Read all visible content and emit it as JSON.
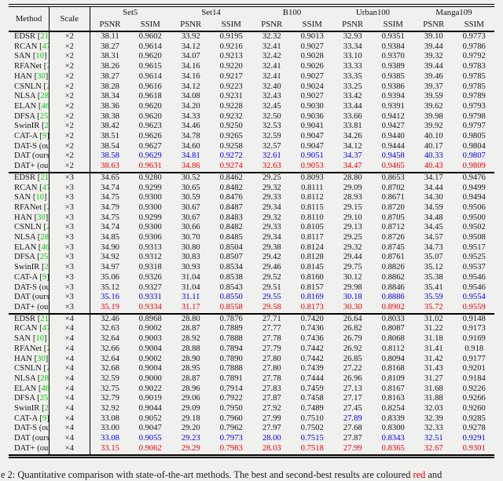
{
  "colors": {
    "cite_green": "#00cc00",
    "second_best_blue": "#0000e6",
    "best_red": "#e60000"
  },
  "table": {
    "header": {
      "method": "Method",
      "scale": "Scale",
      "psnr": "PSNR",
      "ssim": "SSIM",
      "datasets": [
        "Set5",
        "Set14",
        "B100",
        "Urban100",
        "Manga109"
      ]
    },
    "blocks": [
      {
        "scale": "×2",
        "rows": [
          {
            "method": "EDSR",
            "cite": "21",
            "style": "normal",
            "values": [
              "38.11",
              "0.9602",
              "33.92",
              "0.9195",
              "32.32",
              "0.9013",
              "32.93",
              "0.9351",
              "39.10",
              "0.9773"
            ]
          },
          {
            "method": "RCAN",
            "cite": "47",
            "style": "normal",
            "values": [
              "38.27",
              "0.9614",
              "34.12",
              "0.9216",
              "32.41",
              "0.9027",
              "33.34",
              "0.9384",
              "39.44",
              "0.9786"
            ]
          },
          {
            "method": "SAN",
            "cite": "10",
            "style": "normal",
            "values": [
              "38.31",
              "0.9620",
              "34.07",
              "0.9213",
              "32.42",
              "0.9028",
              "33.10",
              "0.9370",
              "39.32",
              "0.9792"
            ]
          },
          {
            "method": "RFANet",
            "cite": "23",
            "style": "normal",
            "values": [
              "38.26",
              "0.9615",
              "34.16",
              "0.9220",
              "32.41",
              "0.9026",
              "33.33",
              "0.9389",
              "39.44",
              "0.9783"
            ]
          },
          {
            "method": "HAN",
            "cite": "30",
            "style": "normal",
            "values": [
              "38.27",
              "0.9614",
              "34.16",
              "0.9217",
              "32.41",
              "0.9027",
              "33.35",
              "0.9385",
              "39.46",
              "0.9785"
            ]
          },
          {
            "method": "CSNLN",
            "cite": "29",
            "style": "normal",
            "values": [
              "38.28",
              "0.9616",
              "34.12",
              "0.9223",
              "32.40",
              "0.9024",
              "33.25",
              "0.9386",
              "39.37",
              "0.9785"
            ]
          },
          {
            "method": "NLSA",
            "cite": "28",
            "style": "normal",
            "values": [
              "38.34",
              "0.9618",
              "34.08",
              "0.9231",
              "32.43",
              "0.9027",
              "33.42",
              "0.9394",
              "39.59",
              "0.9789"
            ]
          },
          {
            "method": "ELAN",
            "cite": "46",
            "style": "normal",
            "values": [
              "38.36",
              "0.9620",
              "34.20",
              "0.9228",
              "32.45",
              "0.9030",
              "33.44",
              "0.9391",
              "39.62",
              "0.9793"
            ]
          },
          {
            "method": "DFSA",
            "cite": "25",
            "style": "normal",
            "values": [
              "38.38",
              "0.9620",
              "34.33",
              "0.9232",
              "32.50",
              "0.9036",
              "33.66",
              "0.9412",
              "39.98",
              "0.9798"
            ]
          },
          {
            "method": "SwinIR",
            "cite": "20",
            "style": "normal",
            "values": [
              "38.42",
              "0.9623",
              "34.46",
              "0.9250",
              "32.53",
              "0.9041",
              "33.81",
              "0.9427",
              "39.92",
              "0.9797"
            ]
          },
          {
            "method": "CAT-A",
            "cite": "9",
            "style": "normal",
            "values": [
              "38.51",
              "0.9626",
              "34.78",
              "0.9265",
              "32.59",
              "0.9047",
              "34.26",
              "0.9440",
              "40.10",
              "0.9805"
            ]
          },
          {
            "method": "DAT-S (ours)",
            "cite": null,
            "style": "normal",
            "values": [
              "38.54",
              "0.9627",
              "34.60",
              "0.9258",
              "32.57",
              "0.9047",
              "34.12",
              "0.9444",
              "40.17",
              "0.9804"
            ]
          },
          {
            "method": "DAT (ours)",
            "cite": null,
            "style": "second",
            "values": [
              "38.58",
              "0.9629",
              "34.81",
              "0.9272",
              "32.61",
              "0.9051",
              "34.37",
              "0.9458",
              "40.33",
              "0.9807"
            ]
          },
          {
            "method": "DAT+ (ours)",
            "cite": null,
            "style": "best",
            "values": [
              "38.63",
              "0.9631",
              "34.86",
              "0.9274",
              "32.63",
              "0.9053",
              "34.47",
              "0.9465",
              "40.43",
              "0.9809"
            ]
          }
        ]
      },
      {
        "scale": "×3",
        "rows": [
          {
            "method": "EDSR",
            "cite": "21",
            "style": "normal",
            "values": [
              "34.65",
              "0.9280",
              "30.52",
              "0.8462",
              "29.25",
              "0.8093",
              "28.80",
              "0.8653",
              "34.17",
              "0.9476"
            ]
          },
          {
            "method": "RCAN",
            "cite": "47",
            "style": "normal",
            "values": [
              "34.74",
              "0.9299",
              "30.65",
              "0.8482",
              "29.32",
              "0.8111",
              "29.09",
              "0.8702",
              "34.44",
              "0.9499"
            ]
          },
          {
            "method": "SAN",
            "cite": "10",
            "style": "normal",
            "values": [
              "34.75",
              "0.9300",
              "30.59",
              "0.8476",
              "29.33",
              "0.8112",
              "28.93",
              "0.8671",
              "34.30",
              "0.9494"
            ]
          },
          {
            "method": "RFANet",
            "cite": "23",
            "style": "normal",
            "values": [
              "34.79",
              "0.9300",
              "30.67",
              "0.8487",
              "29.34",
              "0.8115",
              "29.15",
              "0.8720",
              "34.59",
              "0.9506"
            ]
          },
          {
            "method": "HAN",
            "cite": "30",
            "style": "normal",
            "values": [
              "34.75",
              "0.9299",
              "30.67",
              "0.8483",
              "29.32",
              "0.8110",
              "29.10",
              "0.8705",
              "34.48",
              "0.9500"
            ]
          },
          {
            "method": "CSNLN",
            "cite": "29",
            "style": "normal",
            "values": [
              "34.74",
              "0.9300",
              "30.66",
              "0.8482",
              "29.33",
              "0.8105",
              "29.13",
              "0.8712",
              "34.45",
              "0.9502"
            ]
          },
          {
            "method": "NLSA",
            "cite": "28",
            "style": "normal",
            "values": [
              "34.85",
              "0.9306",
              "30.70",
              "0.8485",
              "29.34",
              "0.8117",
              "29.25",
              "0.8726",
              "34.57",
              "0.9508"
            ]
          },
          {
            "method": "ELAN",
            "cite": "46",
            "style": "normal",
            "values": [
              "34.90",
              "0.9313",
              "30.80",
              "0.8504",
              "29.38",
              "0.8124",
              "29.32",
              "0.8745",
              "34.73",
              "0.9517"
            ]
          },
          {
            "method": "DFSA",
            "cite": "25",
            "style": "normal",
            "values": [
              "34.92",
              "0.9312",
              "30.83",
              "0.8507",
              "29.42",
              "0.8128",
              "29.44",
              "0.8761",
              "35.07",
              "0.9525"
            ]
          },
          {
            "method": "SwinIR",
            "cite": "20",
            "style": "normal",
            "values": [
              "34.97",
              "0.9318",
              "30.93",
              "0.8534",
              "29.46",
              "0.8145",
              "29.75",
              "0.8826",
              "35.12",
              "0.9537"
            ]
          },
          {
            "method": "CAT-A",
            "cite": "9",
            "style": "normal",
            "values": [
              "35.06",
              "0.9326",
              "31.04",
              "0.8538",
              "29.52",
              "0.8160",
              "30.12",
              "0.8862",
              "35.38",
              "0.9546"
            ]
          },
          {
            "method": "DAT-S (ours)",
            "cite": null,
            "style": "normal",
            "values": [
              "35.12",
              "0.9327",
              "31.04",
              "0.8543",
              "29.51",
              "0.8157",
              "29.98",
              "0.8846",
              "35.41",
              "0.9546"
            ]
          },
          {
            "method": "DAT (ours)",
            "cite": null,
            "style": "second",
            "values": [
              "35.16",
              "0.9331",
              "31.11",
              "0.8550",
              "29.55",
              "0.8169",
              "30.18",
              "0.8886",
              "35.59",
              "0.9554"
            ]
          },
          {
            "method": "DAT+ (ours)",
            "cite": null,
            "style": "best",
            "values": [
              "35.19",
              "0.9334",
              "31.17",
              "0.8558",
              "29.58",
              "0.8173",
              "30.30",
              "0.8902",
              "35.72",
              "0.9559"
            ]
          }
        ]
      },
      {
        "scale": "×4",
        "rows": [
          {
            "method": "EDSR",
            "cite": "21",
            "style": "normal",
            "values": [
              "32.46",
              "0.8968",
              "28.80",
              "0.7876",
              "27.71",
              "0.7420",
              "26.64",
              "0.8033",
              "31.02",
              "0.9148"
            ]
          },
          {
            "method": "RCAN",
            "cite": "47",
            "style": "normal",
            "values": [
              "32.63",
              "0.9002",
              "28.87",
              "0.7889",
              "27.77",
              "0.7436",
              "26.82",
              "0.8087",
              "31.22",
              "0.9173"
            ]
          },
          {
            "method": "SAN",
            "cite": "10",
            "style": "normal",
            "values": [
              "32.64",
              "0.9003",
              "28.92",
              "0.7888",
              "27.78",
              "0.7436",
              "26.79",
              "0.8068",
              "31.18",
              "0.9169"
            ]
          },
          {
            "method": "RFANet",
            "cite": "23",
            "style": "normal",
            "values": [
              "32.66",
              "0.9004",
              "28.88",
              "0.7894",
              "27.79",
              "0.7442",
              "26.92",
              "0.8112",
              "31.41",
              "0.918"
            ]
          },
          {
            "method": "HAN",
            "cite": "30",
            "style": "normal",
            "values": [
              "32.64",
              "0.9002",
              "28.90",
              "0.7890",
              "27.80",
              "0.7442",
              "26.85",
              "0.8094",
              "31.42",
              "0.9177"
            ]
          },
          {
            "method": "CSNLN",
            "cite": "29",
            "style": "normal",
            "values": [
              "32.68",
              "0.9004",
              "28.95",
              "0.7888",
              "27.80",
              "0.7439",
              "27.22",
              "0.8168",
              "31.43",
              "0.9201"
            ]
          },
          {
            "method": "NLSA",
            "cite": "28",
            "style": "normal",
            "values": [
              "32.59",
              "0.9000",
              "28.87",
              "0.7891",
              "27.78",
              "0.7444",
              "26.96",
              "0.8109",
              "31.27",
              "0.9184"
            ]
          },
          {
            "method": "ELAN",
            "cite": "46",
            "style": "normal",
            "values": [
              "32.75",
              "0.9022",
              "28.96",
              "0.7914",
              "27.83",
              "0.7459",
              "27.13",
              "0.8167",
              "31.68",
              "0.9226"
            ]
          },
          {
            "method": "DFSA",
            "cite": "25",
            "style": "normal",
            "values": [
              "32.79",
              "0.9019",
              "29.06",
              "0.7922",
              "27.87",
              "0.7458",
              "27.17",
              "0.8163",
              "31.88",
              "0.9266"
            ]
          },
          {
            "method": "SwinIR",
            "cite": "20",
            "style": "normal",
            "values": [
              "32.92",
              "0.9044",
              "29.09",
              "0.7950",
              "27.92",
              "0.7489",
              "27.45",
              "0.8254",
              "32.03",
              "0.9260"
            ]
          },
          {
            "method": "CAT-A",
            "cite": "9",
            "style": "normal",
            "cell_styles": {
              "6": "second"
            },
            "values": [
              "33.08",
              "0.9052",
              "29.18",
              "0.7960",
              "27.99",
              "0.7510",
              "27.89",
              "0.8339",
              "32.39",
              "0.9285"
            ]
          },
          {
            "method": "DAT-S (ours)",
            "cite": null,
            "style": "normal",
            "values": [
              "33.00",
              "0.9047",
              "29.20",
              "0.7962",
              "27.97",
              "0.7502",
              "27.68",
              "0.8300",
              "32.33",
              "0.9278"
            ]
          },
          {
            "method": "DAT (ours)",
            "cite": null,
            "style": "second",
            "cell_styles": {
              "6": "normal"
            },
            "values": [
              "33.08",
              "0.9055",
              "29.23",
              "0.7973",
              "28.00",
              "0.7515",
              "27.87",
              "0.8343",
              "32.51",
              "0.9291"
            ]
          },
          {
            "method": "DAT+ (ours)",
            "cite": null,
            "style": "best",
            "values": [
              "33.15",
              "0.9062",
              "29.29",
              "0.7983",
              "28.03",
              "0.7518",
              "27.99",
              "0.8365",
              "32.67",
              "0.9301"
            ]
          }
        ]
      }
    ]
  },
  "caption": {
    "prefix": "e 2: Quantitative comparison with state-of-the-art methods. The best and second-best results are coloured ",
    "highlight": "red",
    "suffix": " and"
  }
}
